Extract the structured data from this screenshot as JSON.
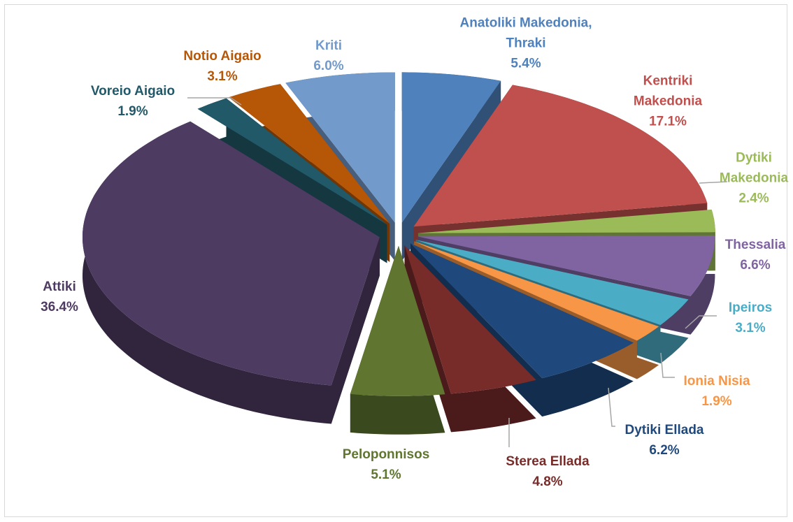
{
  "chart_data": {
    "type": "pie3d",
    "categories": [
      "Anatoliki Makedonia, Thraki",
      "Kentriki Makedonia",
      "Dytiki Makedonia",
      "Thessalia",
      "Ipeiros",
      "Ionia Nisia",
      "Dytiki Ellada",
      "Sterea Ellada",
      "Peloponnisos",
      "Attiki",
      "Voreio Aigaio",
      "Notio Aigaio",
      "Kriti"
    ],
    "values": [
      5.4,
      17.1,
      2.4,
      6.6,
      3.1,
      1.9,
      6.2,
      4.8,
      5.1,
      36.4,
      1.9,
      3.1,
      6.0
    ],
    "value_labels": [
      "5.4%",
      "17.1%",
      "2.4%",
      "6.6%",
      "3.1%",
      "1.9%",
      "6.2%",
      "4.8%",
      "5.1%",
      "36.4%",
      "1.9%",
      "3.1%",
      "6.0%"
    ],
    "colors": [
      "#4f81bd",
      "#c0504d",
      "#9bbb59",
      "#8064a2",
      "#4bacc6",
      "#f79646",
      "#1f497d",
      "#772c2a",
      "#5f7530",
      "#4d3b62",
      "#215968",
      "#b65708",
      "#729aca"
    ],
    "label_colors": [
      "#4f81bd",
      "#c0504d",
      "#9bbb59",
      "#8064a2",
      "#4bacc6",
      "#f79646",
      "#1f497d",
      "#772c2a",
      "#5f7530",
      "#4d3b62",
      "#215968",
      "#b65708",
      "#729aca"
    ]
  }
}
